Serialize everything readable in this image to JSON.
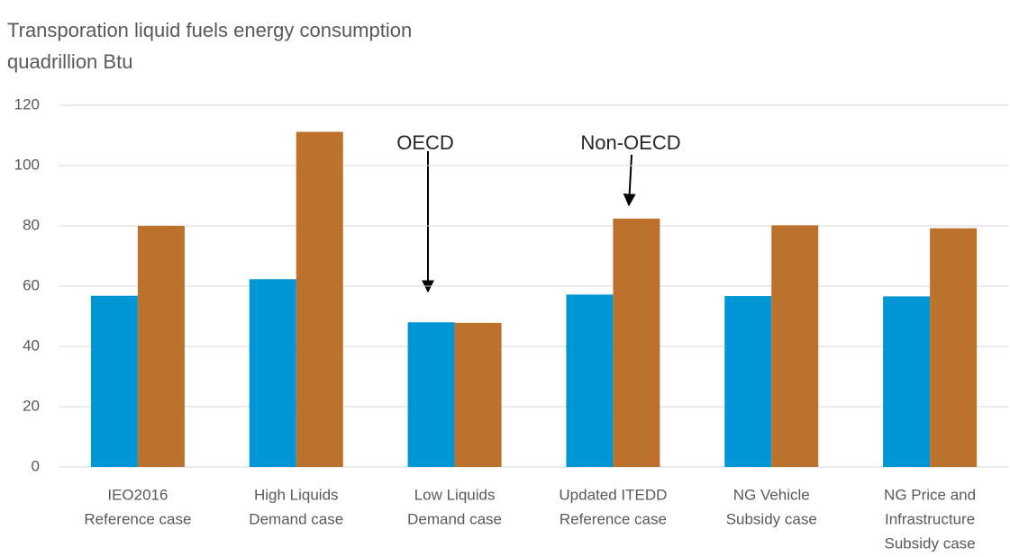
{
  "chart_data": {
    "type": "bar",
    "title": "Transporation liquid fuels energy consumption",
    "subtitle": "quadrillion Btu",
    "categories": [
      [
        "IEO2016",
        "Reference case"
      ],
      [
        "High Liquids",
        "Demand case"
      ],
      [
        "Low Liquids",
        "Demand case"
      ],
      [
        "Updated ITEDD",
        "Reference case"
      ],
      [
        "NG Vehicle",
        "Subsidy case"
      ],
      [
        "NG Price and",
        "Infrastructure",
        "Subsidy case"
      ]
    ],
    "series": [
      {
        "name": "OECD",
        "color": "#0096d6",
        "values": [
          56.8,
          62.3,
          48.0,
          57.2,
          56.7,
          56.6
        ]
      },
      {
        "name": "Non-OECD",
        "color": "#bc722c",
        "values": [
          80.0,
          111.2,
          47.8,
          82.4,
          80.2,
          79.2
        ]
      }
    ],
    "ylim": [
      0,
      120
    ],
    "yticks": [
      0,
      20,
      40,
      60,
      80,
      100,
      120
    ],
    "grid": true
  }
}
